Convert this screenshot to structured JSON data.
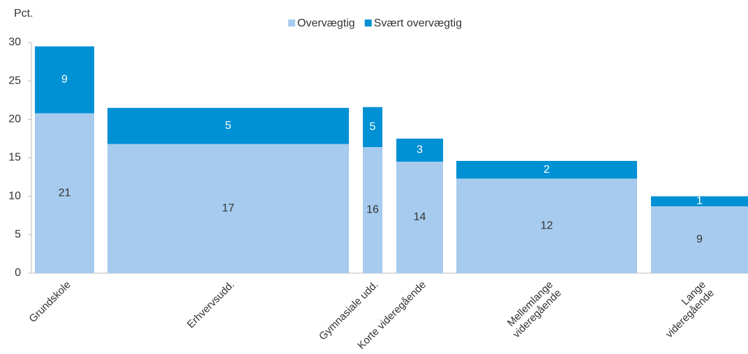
{
  "chart_data": {
    "type": "stacked_bar",
    "y_label": "Pct.",
    "categories": [
      "Grundskole",
      "Erhvervsudd.",
      "Gymnasiale udd.",
      "Korte videregående",
      "Mellemlange\nvideregående",
      "Lange\nvideregående"
    ],
    "series": [
      {
        "name": "Overvægtig",
        "color": "#a6cbee",
        "values": [
          20.8,
          16.8,
          16.4,
          14.5,
          12.3,
          8.7
        ],
        "value_labels": [
          "21",
          "17",
          "16",
          "14",
          "12",
          "9"
        ]
      },
      {
        "name": "Svært overvægtig",
        "color": "#0090d4",
        "values": [
          8.7,
          4.7,
          5.2,
          3.0,
          2.3,
          1.3
        ],
        "value_labels": [
          "9",
          "5",
          "5",
          "3",
          "2",
          "1"
        ]
      }
    ],
    "ylim": [
      0,
      30
    ],
    "yticks": [
      0,
      5,
      10,
      15,
      20,
      25,
      30
    ],
    "grid": false,
    "legend": "top"
  }
}
